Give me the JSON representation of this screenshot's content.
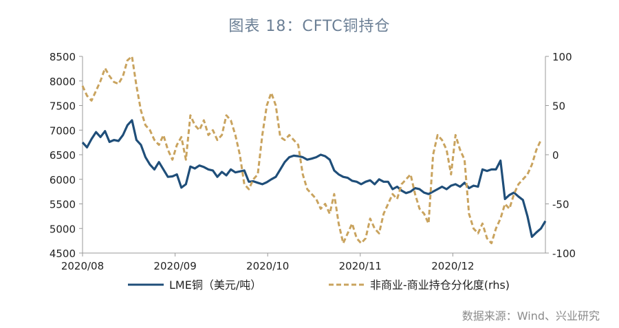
{
  "title": "图表 18：CFTC铜持仓",
  "source": "数据来源：Wind、兴业研究",
  "chart_data": {
    "type": "line",
    "title": "图表 18：CFTC铜持仓",
    "x_ticks": [
      "2020/08",
      "2020/09",
      "2020/10",
      "2020/11",
      "2020/12"
    ],
    "x_range": [
      0,
      103
    ],
    "y_left": {
      "range": [
        4500,
        8500
      ],
      "ticks": [
        4500,
        5000,
        5500,
        6000,
        6500,
        7000,
        7500,
        8000,
        8500
      ]
    },
    "y_right": {
      "range": [
        -100,
        100
      ],
      "ticks": [
        -100,
        -50,
        0,
        50,
        100
      ],
      "label": "rhs"
    },
    "series": [
      {
        "name": "LME铜（美元/吨）",
        "axis": "left",
        "color": "#1f4e79",
        "style": "solid",
        "values": [
          6750,
          6650,
          6820,
          6960,
          6860,
          6980,
          6760,
          6800,
          6780,
          6900,
          7100,
          7200,
          6800,
          6700,
          6450,
          6300,
          6200,
          6350,
          6200,
          6050,
          6060,
          6100,
          5830,
          5900,
          6260,
          6220,
          6280,
          6250,
          6200,
          6180,
          6050,
          6150,
          6080,
          6200,
          6140,
          6160,
          6180,
          5950,
          5960,
          5930,
          5900,
          5940,
          6000,
          6050,
          6200,
          6350,
          6450,
          6480,
          6470,
          6450,
          6400,
          6420,
          6450,
          6500,
          6470,
          6400,
          6180,
          6100,
          6050,
          6030,
          5970,
          5950,
          5900,
          5950,
          5980,
          5900,
          6000,
          5950,
          5950,
          5800,
          5850,
          5770,
          5720,
          5750,
          5820,
          5800,
          5730,
          5700,
          5750,
          5800,
          5850,
          5800,
          5870,
          5900,
          5850,
          5930,
          5820,
          5870,
          5850,
          6200,
          6170,
          6200,
          6200,
          6380,
          5600,
          5680,
          5730,
          5650,
          5580,
          5250,
          4830,
          4920,
          5000,
          5150
        ]
      },
      {
        "name": "非商业-商业持仓分化度(rhs)",
        "axis": "right",
        "color": "#c9a35e",
        "style": "dashed",
        "values": [
          70,
          60,
          55,
          65,
          75,
          88,
          80,
          74,
          72,
          80,
          96,
          100,
          70,
          45,
          30,
          25,
          15,
          10,
          20,
          5,
          -5,
          10,
          18,
          -5,
          40,
          30,
          25,
          35,
          20,
          25,
          15,
          20,
          40,
          35,
          20,
          0,
          -30,
          -35,
          -25,
          -20,
          20,
          50,
          63,
          50,
          18,
          15,
          20,
          15,
          10,
          -20,
          -35,
          -40,
          -45,
          -55,
          -50,
          -60,
          -40,
          -70,
          -90,
          -80,
          -70,
          -85,
          -90,
          -85,
          -65,
          -75,
          -80,
          -60,
          -50,
          -40,
          -45,
          -30,
          -25,
          -20,
          -40,
          -55,
          -60,
          -70,
          0,
          20,
          15,
          5,
          -20,
          20,
          5,
          -5,
          -60,
          -75,
          -80,
          -70,
          -85,
          -90,
          -75,
          -65,
          -50,
          -55,
          -40,
          -30,
          -25,
          -20,
          -10,
          5,
          15
        ]
      }
    ],
    "legend": [
      "LME铜（美元/吨）",
      "非商业-商业持仓分化度(rhs)"
    ],
    "legend_position": "bottom"
  },
  "colors": {
    "title": "#6b7f95",
    "axis": "#999999",
    "text": "#222222"
  }
}
